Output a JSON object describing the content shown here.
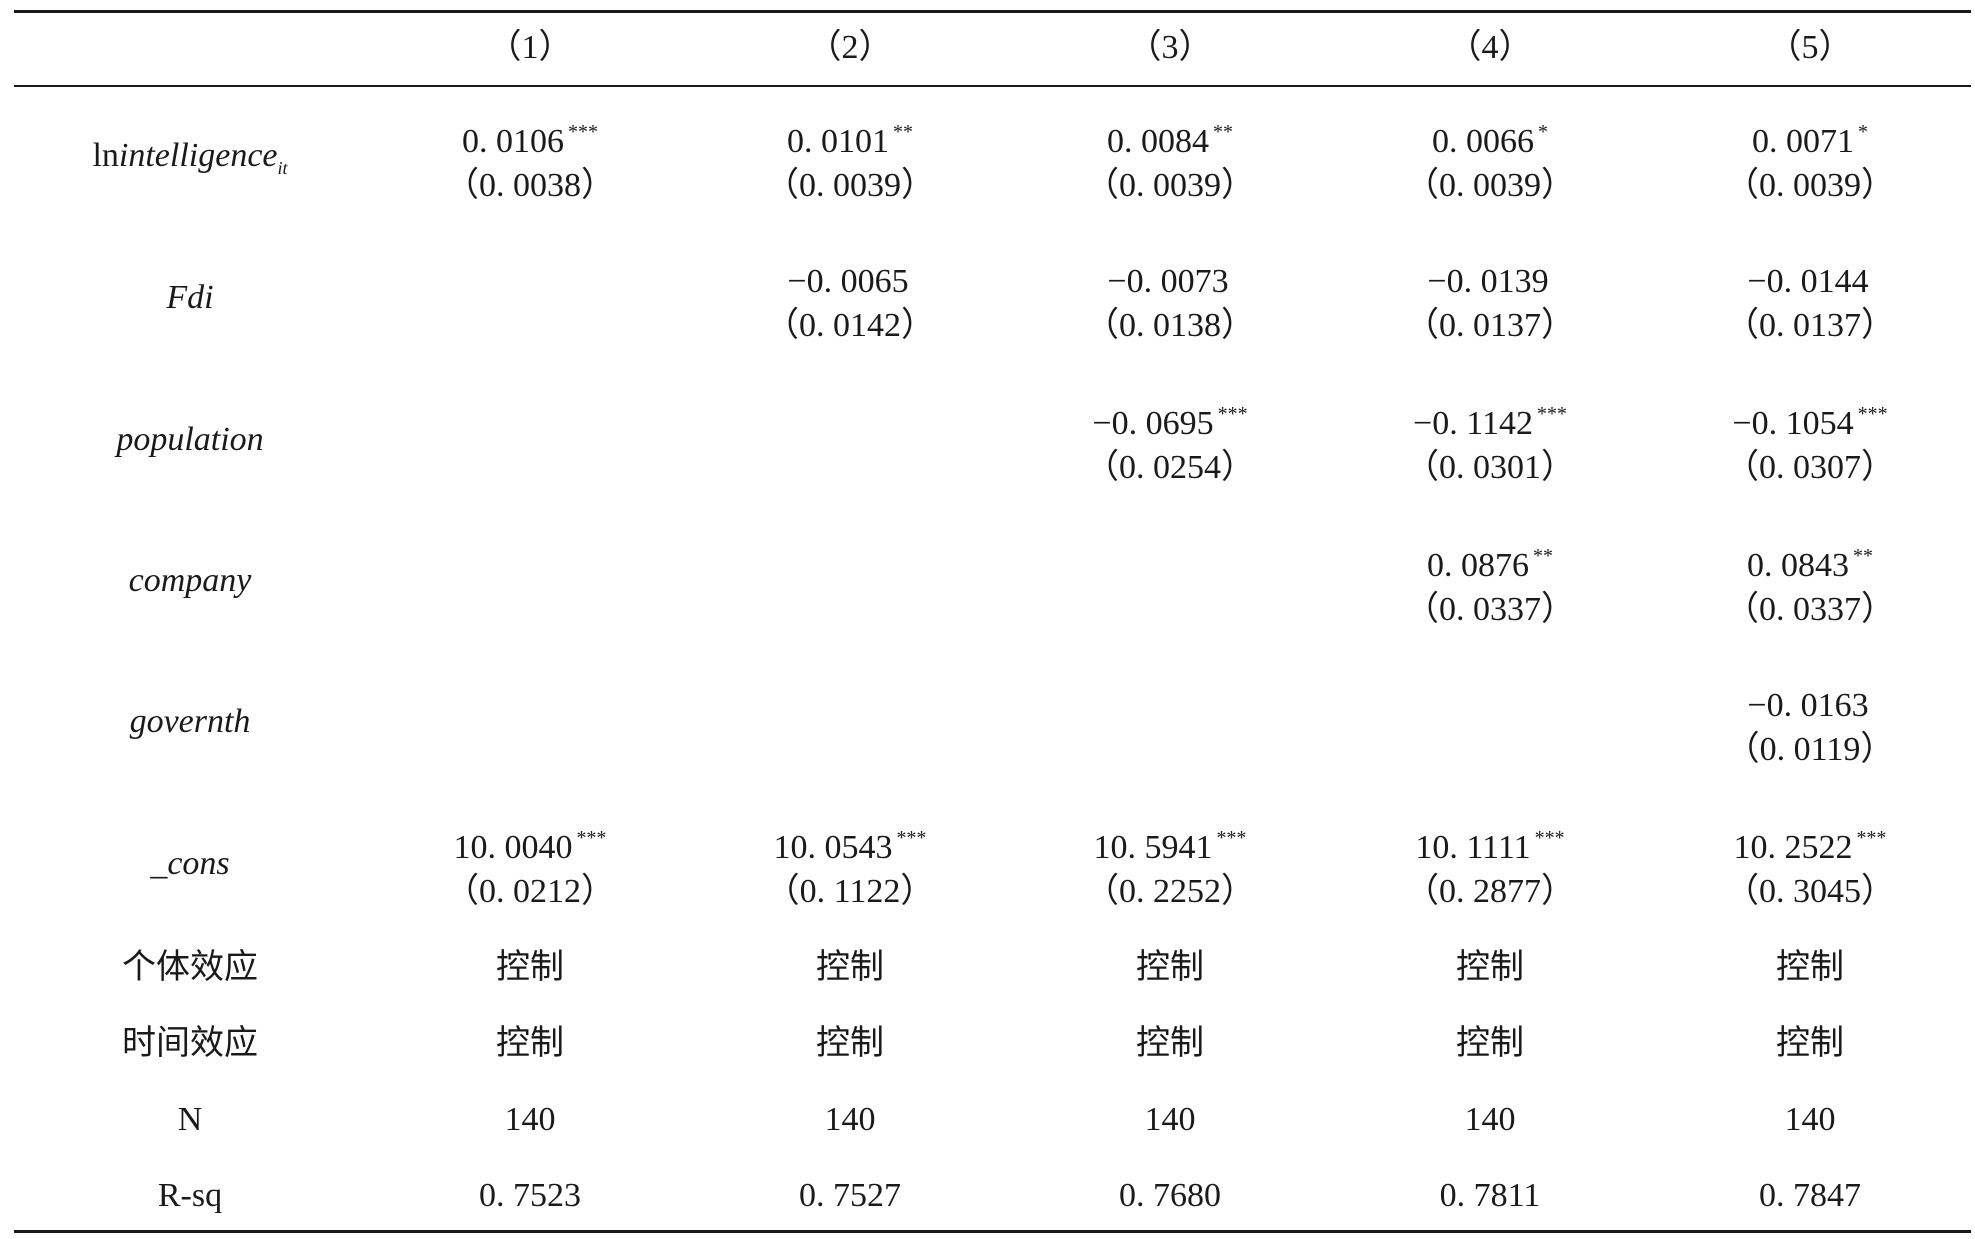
{
  "columns": [
    "（1）",
    "（2）",
    "（3）",
    "（4）",
    "（5）"
  ],
  "rows": [
    {
      "label_prefix": "ln",
      "label": "intelligence",
      "label_sub": "it",
      "cells": [
        {
          "coef": "0. 0106",
          "stars": "***",
          "se": "（0. 0038）"
        },
        {
          "coef": "0. 0101",
          "stars": "**",
          "se": "（0. 0039）"
        },
        {
          "coef": "0. 0084",
          "stars": "**",
          "se": "（0. 0039）"
        },
        {
          "coef": "0. 0066",
          "stars": "*",
          "se": "（0. 0039）"
        },
        {
          "coef": "0. 0071",
          "stars": "*",
          "se": "（0. 0039）"
        }
      ]
    },
    {
      "label": "Fdi",
      "cells": [
        {
          "coef": "",
          "stars": "",
          "se": ""
        },
        {
          "coef": "−0. 0065",
          "stars": "",
          "se": "（0. 0142）"
        },
        {
          "coef": "−0. 0073",
          "stars": "",
          "se": "（0. 0138）"
        },
        {
          "coef": "−0. 0139",
          "stars": "",
          "se": "（0. 0137）"
        },
        {
          "coef": "−0. 0144",
          "stars": "",
          "se": "（0. 0137）"
        }
      ]
    },
    {
      "label": "population",
      "cells": [
        {
          "coef": "",
          "stars": "",
          "se": ""
        },
        {
          "coef": "",
          "stars": "",
          "se": ""
        },
        {
          "coef": "−0. 0695",
          "stars": "***",
          "se": "（0. 0254）"
        },
        {
          "coef": "−0. 1142",
          "stars": "***",
          "se": "（0. 0301）"
        },
        {
          "coef": "−0. 1054",
          "stars": "***",
          "se": "（0. 0307）"
        }
      ]
    },
    {
      "label": "company",
      "cells": [
        {
          "coef": "",
          "stars": "",
          "se": ""
        },
        {
          "coef": "",
          "stars": "",
          "se": ""
        },
        {
          "coef": "",
          "stars": "",
          "se": ""
        },
        {
          "coef": "0. 0876",
          "stars": "**",
          "se": "（0. 0337）"
        },
        {
          "coef": "0. 0843",
          "stars": "**",
          "se": "（0. 0337）"
        }
      ]
    },
    {
      "label": "governth",
      "cells": [
        {
          "coef": "",
          "stars": "",
          "se": ""
        },
        {
          "coef": "",
          "stars": "",
          "se": ""
        },
        {
          "coef": "",
          "stars": "",
          "se": ""
        },
        {
          "coef": "",
          "stars": "",
          "se": ""
        },
        {
          "coef": "−0. 0163",
          "stars": "",
          "se": "（0. 0119）"
        }
      ]
    },
    {
      "label": "_cons",
      "cells": [
        {
          "coef": "10. 0040",
          "stars": "***",
          "se": "（0. 0212）"
        },
        {
          "coef": "10. 0543",
          "stars": "***",
          "se": "（0. 1122）"
        },
        {
          "coef": "10. 5941",
          "stars": "***",
          "se": "（0. 2252）"
        },
        {
          "coef": "10. 1111",
          "stars": "***",
          "se": "（0. 2877）"
        },
        {
          "coef": "10. 2522",
          "stars": "***",
          "se": "（0. 3045）"
        }
      ]
    }
  ],
  "footer_rows": [
    {
      "label": "个体效应",
      "values": [
        "控制",
        "控制",
        "控制",
        "控制",
        "控制"
      ]
    },
    {
      "label": "时间效应",
      "values": [
        "控制",
        "控制",
        "控制",
        "控制",
        "控制"
      ]
    },
    {
      "label": "N",
      "values": [
        "140",
        "140",
        "140",
        "140",
        "140"
      ]
    },
    {
      "label": "R-sq",
      "values": [
        "0. 7523",
        "0. 7527",
        "0. 7680",
        "0. 7811",
        "0. 7847"
      ]
    }
  ]
}
